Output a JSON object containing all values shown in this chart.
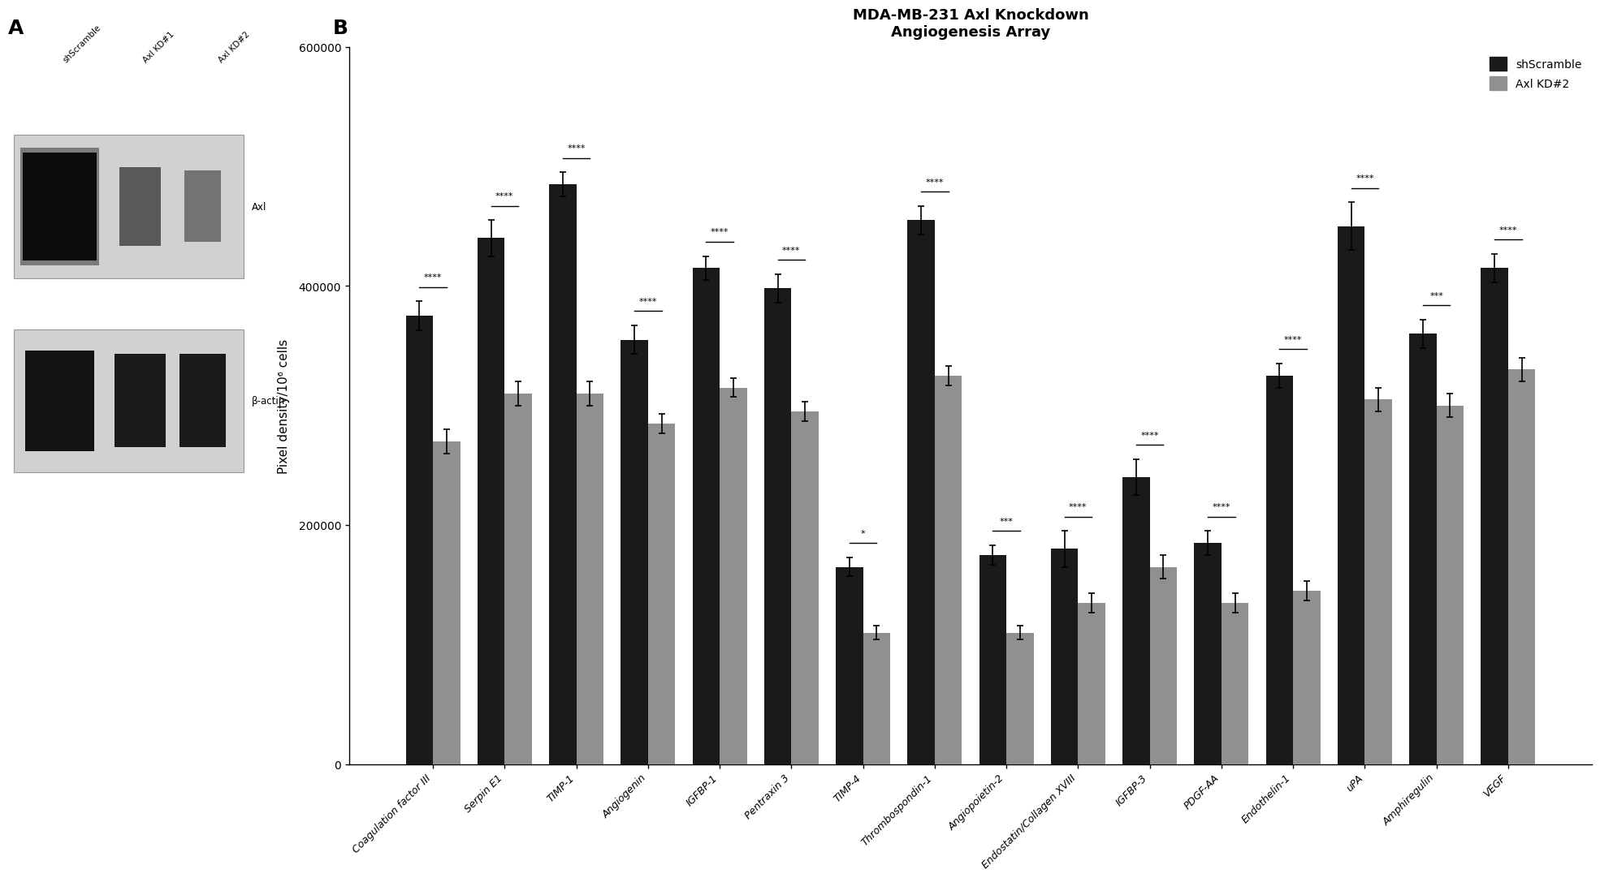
{
  "title": "MDA-MB-231 Axl Knockdown\nAngiogenesis Array",
  "ylabel": "Pixel density/10⁶ cells",
  "categories": [
    "Coagulation factor III",
    "Serpin E1",
    "TIMP-1",
    "Angiogenin",
    "IGFBP-1",
    "Pentraxin 3",
    "TIMP-4",
    "Thrombospondin-1",
    "Angiopoietin-2",
    "Endostatin/Collagen XVIII",
    "IGFBP-3",
    "PDGF-AA",
    "Endothelin-1",
    "uPA",
    "Amphiregulin",
    "VEGF"
  ],
  "shScramble": [
    375000,
    440000,
    485000,
    355000,
    415000,
    398000,
    165000,
    455000,
    175000,
    180000,
    240000,
    185000,
    325000,
    450000,
    360000,
    415000
  ],
  "shScramble_err": [
    12000,
    15000,
    10000,
    12000,
    10000,
    12000,
    8000,
    12000,
    8000,
    15000,
    15000,
    10000,
    10000,
    20000,
    12000,
    12000
  ],
  "AxlKD2": [
    270000,
    310000,
    310000,
    285000,
    315000,
    295000,
    110000,
    325000,
    110000,
    135000,
    165000,
    135000,
    145000,
    305000,
    300000,
    330000
  ],
  "AxlKD2_err": [
    10000,
    10000,
    10000,
    8000,
    8000,
    8000,
    6000,
    8000,
    6000,
    8000,
    10000,
    8000,
    8000,
    10000,
    10000,
    10000
  ],
  "significance": [
    "****",
    "****",
    "****",
    "****",
    "****",
    "****",
    "*",
    "****",
    "***",
    "****",
    "****",
    "****",
    "****",
    "****",
    "***",
    "****"
  ],
  "bar_color_black": "#1a1a1a",
  "bar_color_gray": "#909090",
  "background_color": "#ffffff",
  "ylim": [
    0,
    600000
  ],
  "yticks": [
    0,
    200000,
    400000,
    600000
  ],
  "legend_labels": [
    "shScramble",
    "Axl KD#2"
  ],
  "panel_a_label": "A",
  "panel_b_label": "B",
  "col_labels": [
    "shScramble",
    "Axl KD#1",
    "Axl KD#2"
  ],
  "blot_labels": [
    "Axl",
    "β-actin"
  ]
}
